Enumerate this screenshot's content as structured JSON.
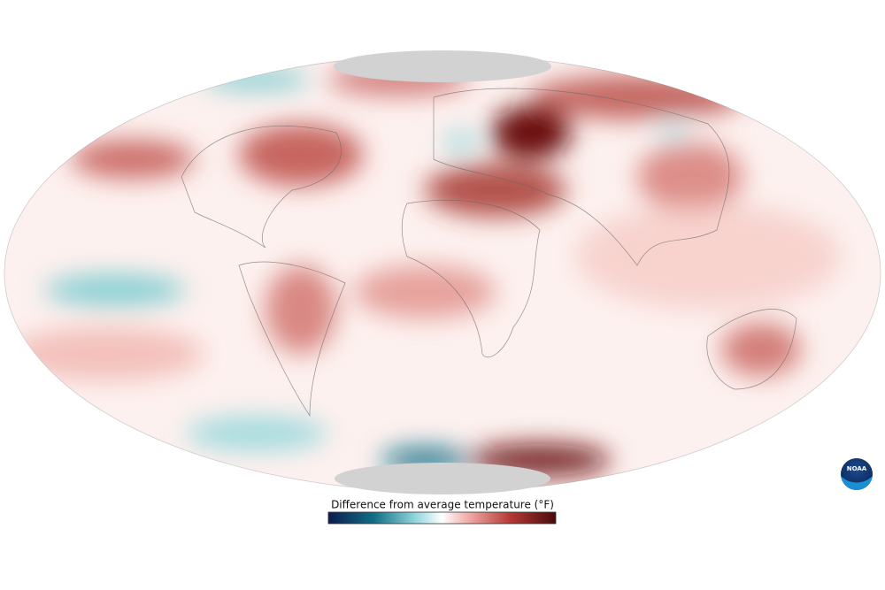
{
  "legend": {
    "title": "Difference from average temperature (°F)"
  },
  "logo": {
    "label": "NOAA"
  }
}
